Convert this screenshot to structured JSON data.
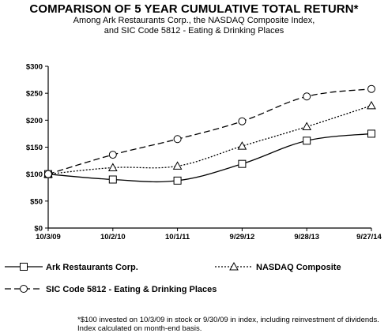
{
  "chart_data": {
    "type": "line",
    "title": "COMPARISON OF 5 YEAR CUMULATIVE TOTAL RETURN*",
    "subtitle_lines": [
      "Among Ark Restaurants Corp., the NASDAQ Composite Index,",
      "and SIC Code 5812 - Eating & Drinking Places"
    ],
    "categories": [
      "10/3/09",
      "10/2/10",
      "10/1/11",
      "9/29/12",
      "9/28/13",
      "9/27/14"
    ],
    "yticks": [
      "$0",
      "$50",
      "$100",
      "$150",
      "$200",
      "$250",
      "$300"
    ],
    "ylim": [
      0,
      300
    ],
    "grid": false,
    "legend_position": "bottom",
    "series": [
      {
        "name": "Ark Restaurants Corp.",
        "marker": "square",
        "dash": "solid",
        "values": [
          100,
          90,
          88,
          119,
          162,
          175
        ]
      },
      {
        "name": "NASDAQ Composite",
        "marker": "triangle",
        "dash": "dotted",
        "values": [
          100,
          112,
          115,
          152,
          188,
          227
        ]
      },
      {
        "name": "SIC Code 5812 - Eating & Drinking Places",
        "marker": "circle",
        "dash": "dashed",
        "values": [
          100,
          136,
          165,
          198,
          244,
          258
        ]
      }
    ],
    "footnote_lines": [
      "*$100 invested on 10/3/09 in stock or 9/30/09 in index, including reinvestment of dividends.",
      "Index calculated on month-end basis."
    ]
  }
}
